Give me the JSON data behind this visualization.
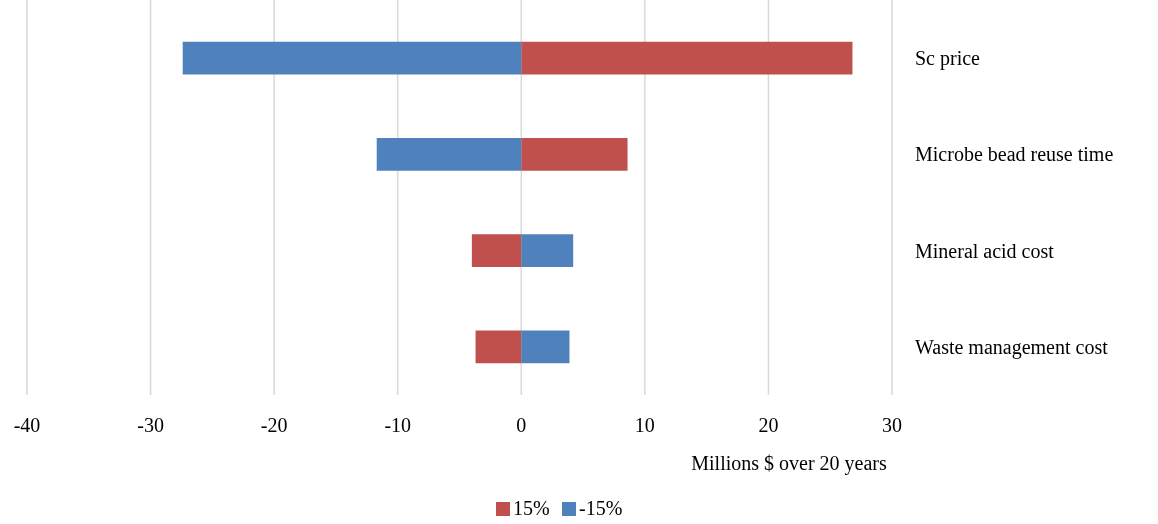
{
  "chart_data": {
    "type": "bar",
    "orientation": "horizontal",
    "xlabel": "Millions $ over 20 years",
    "categories": [
      "Sc price",
      "Microbe bead reuse time",
      "Mineral acid cost",
      "Waste management cost"
    ],
    "series": [
      {
        "name": "15%",
        "color": "#c0504d",
        "values": [
          26.8,
          8.6,
          -4.0,
          -3.7
        ]
      },
      {
        "name": "-15%",
        "color": "#4f81bd",
        "values": [
          -27.4,
          -11.7,
          4.2,
          3.9
        ]
      }
    ],
    "xlim": [
      -40,
      30
    ],
    "xticks": [
      -40,
      -30,
      -20,
      -10,
      0,
      10,
      20,
      30
    ],
    "grid": "x",
    "legend": "bottom",
    "stacked": true
  }
}
